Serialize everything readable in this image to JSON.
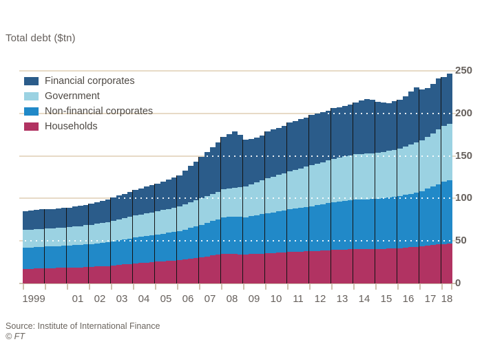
{
  "title": "Total debt ($tn)",
  "source": "Source: Institute of International Finance",
  "credit": "© FT",
  "colors": {
    "background": "#ffffff",
    "financial_corporates": "#2b5c8a",
    "government": "#9bd2e2",
    "non_financial_corporates": "#2189c8",
    "households": "#b13362",
    "gridline": "#e7dac6",
    "axis": "#cfc2af",
    "text": "#66605c",
    "year_separator": "#141414"
  },
  "legend": [
    {
      "label": "Financial corporates",
      "color": "#2b5c8a"
    },
    {
      "label": "Government",
      "color": "#9bd2e2"
    },
    {
      "label": "Non-financial corporates",
      "color": "#2189c8"
    },
    {
      "label": "Households",
      "color": "#b13362"
    }
  ],
  "chart_data": {
    "type": "bar",
    "stacked": true,
    "title": "Total debt ($tn)",
    "x_unit": "quarters",
    "ylim": [
      0,
      250
    ],
    "yticks": [
      0,
      50,
      100,
      150,
      200,
      250
    ],
    "gridlines": [
      50,
      100,
      150,
      200,
      250
    ],
    "dotted_overlay_levels": [
      50,
      100,
      150,
      200
    ],
    "ylabel_side": "right",
    "years": [
      "1999",
      "2000",
      "2001",
      "2002",
      "2003",
      "2004",
      "2005",
      "2006",
      "2007",
      "2008",
      "2009",
      "2010",
      "2011",
      "2012",
      "2013",
      "2014",
      "2015",
      "2016",
      "2017",
      "2018"
    ],
    "x_tick_labels": [
      "1999",
      "",
      "01",
      "02",
      "03",
      "04",
      "05",
      "06",
      "07",
      "08",
      "09",
      "10",
      "11",
      "12",
      "13",
      "14",
      "15",
      "16",
      "17",
      "18"
    ],
    "quarters_per_year": [
      4,
      4,
      4,
      4,
      4,
      4,
      4,
      4,
      4,
      4,
      4,
      4,
      4,
      4,
      4,
      4,
      4,
      4,
      4,
      2
    ],
    "series": [
      {
        "name": "Households",
        "color": "#b13362",
        "values": [
          17,
          17.3,
          17.5,
          17.8,
          18,
          18.1,
          18.3,
          18.4,
          18.5,
          18.8,
          19,
          19.3,
          19.5,
          19.9,
          20.3,
          20.6,
          21,
          21.6,
          22.3,
          22.9,
          23.5,
          24,
          24.5,
          25,
          25.5,
          26,
          26.5,
          27,
          27.5,
          28.4,
          29.3,
          30.1,
          31,
          31.9,
          32.8,
          33.6,
          34.5,
          34.6,
          34.5,
          34.2,
          34,
          34.4,
          34.8,
          35.1,
          35.5,
          35.9,
          36.3,
          36.6,
          37,
          37.3,
          37.5,
          37.8,
          38,
          38.4,
          38.8,
          39.1,
          39.5,
          39.8,
          40,
          40.3,
          40.5,
          40.5,
          40.5,
          40.5,
          40.5,
          40.8,
          41,
          41.3,
          41.5,
          42,
          42.5,
          43,
          43.5,
          44.3,
          45,
          45.8,
          46.5,
          47
        ]
      },
      {
        "name": "Non-financial corporates",
        "color": "#2189c8",
        "values": [
          25,
          25.1,
          25.3,
          25.4,
          25.5,
          25.6,
          25.8,
          25.9,
          26,
          26.3,
          26.5,
          26.8,
          27,
          27.4,
          27.8,
          28.1,
          28.5,
          29,
          29.5,
          30,
          30.5,
          30.9,
          31.3,
          31.6,
          32,
          32.5,
          33,
          33.5,
          34,
          35,
          36,
          37,
          38,
          39.3,
          40.5,
          41.8,
          43,
          43.5,
          43.8,
          43.9,
          44,
          44.8,
          45.5,
          46.3,
          47,
          47.8,
          48.5,
          49.3,
          50,
          50.8,
          51.5,
          52.3,
          53,
          53.8,
          54.5,
          55.3,
          56,
          56.5,
          57,
          57.5,
          58,
          58.3,
          58.5,
          58.8,
          59,
          59.5,
          60,
          60.5,
          61,
          62,
          63,
          64,
          65,
          67,
          69,
          71,
          73,
          74.5
        ]
      },
      {
        "name": "Government",
        "color": "#9bd2e2",
        "values": [
          21,
          21,
          21,
          21,
          21,
          21.1,
          21.3,
          21.4,
          21.5,
          21.8,
          22,
          22.3,
          22.5,
          22.9,
          23.3,
          23.6,
          24,
          24.5,
          25,
          25.5,
          26,
          26.4,
          26.8,
          27.1,
          27.5,
          27.9,
          28.3,
          28.6,
          29,
          29.5,
          30,
          30.5,
          31,
          31.5,
          32,
          32.5,
          33,
          33.8,
          34.5,
          35.3,
          36,
          37.3,
          38.5,
          39.8,
          41,
          41.9,
          42.8,
          43.6,
          44.5,
          45.4,
          46.3,
          47.1,
          48,
          48.8,
          49.5,
          50.3,
          51,
          51.6,
          52.3,
          52.9,
          53.5,
          53.6,
          53.8,
          53.9,
          54,
          54.5,
          55,
          55.5,
          56,
          57,
          58,
          59,
          60,
          61.4,
          62.8,
          64.1,
          65.5,
          66.5
        ]
      },
      {
        "name": "Financial corporates",
        "color": "#2b5c8a",
        "values": [
          22,
          22.4,
          22.8,
          23.1,
          23,
          22.9,
          22.9,
          23,
          23,
          23.4,
          23.8,
          24.1,
          24.5,
          25.3,
          26,
          26.8,
          27.5,
          28.1,
          28.8,
          29.4,
          30,
          30.6,
          31.3,
          31.9,
          32.5,
          33.5,
          34.5,
          35.5,
          36.5,
          39.6,
          42.7,
          45.9,
          49,
          52.1,
          55.2,
          58.4,
          61.5,
          64,
          66,
          61,
          55,
          53.5,
          52.5,
          53,
          55.5,
          55.4,
          55.4,
          55.5,
          57.5,
          57.5,
          57.7,
          57.8,
          59,
          58.8,
          58.7,
          58.3,
          59.5,
          59.6,
          59.7,
          59.8,
          61,
          62.6,
          64.2,
          62.8,
          60.5,
          58.2,
          56,
          57.2,
          57.5,
          59,
          62.5,
          65,
          59.5,
          57.3,
          58.2,
          60.1,
          58,
          59
        ]
      }
    ]
  }
}
